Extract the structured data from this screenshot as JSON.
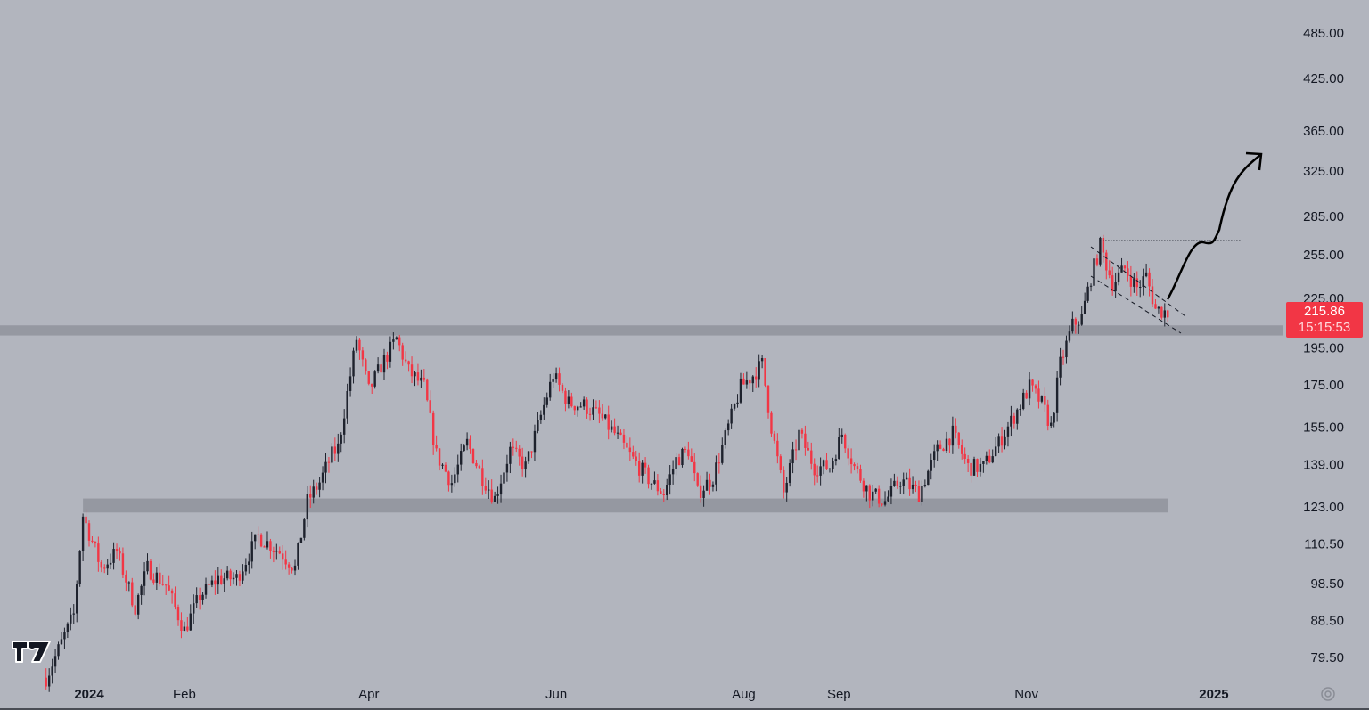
{
  "chart_data": {
    "type": "candlestick",
    "y_scale": "log",
    "ylim": [
      75,
      520
    ],
    "y_ticks": [
      "485.00",
      "425.00",
      "365.00",
      "325.00",
      "285.00",
      "255.00",
      "225.00",
      "195.00",
      "175.00",
      "155.00",
      "139.00",
      "123.00",
      "110.50",
      "98.50",
      "88.50",
      "79.50"
    ],
    "x_ticks": [
      {
        "label": "2024",
        "date": "2024-01-01",
        "bold": true
      },
      {
        "label": "Feb",
        "date": "2024-02-01",
        "bold": false
      },
      {
        "label": "Apr",
        "date": "2024-04-01",
        "bold": false
      },
      {
        "label": "Jun",
        "date": "2024-06-01",
        "bold": false
      },
      {
        "label": "Aug",
        "date": "2024-08-01",
        "bold": false
      },
      {
        "label": "Sep",
        "date": "2024-09-01",
        "bold": false
      },
      {
        "label": "Nov",
        "date": "2024-11-01",
        "bold": false
      },
      {
        "label": "2025",
        "date": "2025-01-01",
        "bold": true
      }
    ],
    "close_path": [
      [
        "2023-12-18",
        75
      ],
      [
        "2023-12-27",
        90
      ],
      [
        "2023-12-30",
        120
      ],
      [
        "2024-01-05",
        103
      ],
      [
        "2024-01-10",
        108
      ],
      [
        "2024-01-16",
        92
      ],
      [
        "2024-01-20",
        103
      ],
      [
        "2024-01-26",
        98
      ],
      [
        "2024-02-01",
        86
      ],
      [
        "2024-02-06",
        95
      ],
      [
        "2024-02-12",
        100
      ],
      [
        "2024-02-18",
        100
      ],
      [
        "2024-02-25",
        113
      ],
      [
        "2024-03-03",
        108
      ],
      [
        "2024-03-08",
        103
      ],
      [
        "2024-03-12",
        125
      ],
      [
        "2024-03-16",
        132
      ],
      [
        "2024-03-20",
        143
      ],
      [
        "2024-03-22",
        146
      ],
      [
        "2024-03-26",
        180
      ],
      [
        "2024-03-28",
        200
      ],
      [
        "2024-04-01",
        172
      ],
      [
        "2024-04-05",
        185
      ],
      [
        "2024-04-10",
        200
      ],
      [
        "2024-04-14",
        182
      ],
      [
        "2024-04-19",
        174
      ],
      [
        "2024-04-23",
        143
      ],
      [
        "2024-04-28",
        132
      ],
      [
        "2024-05-03",
        148
      ],
      [
        "2024-05-08",
        134
      ],
      [
        "2024-05-12",
        126
      ],
      [
        "2024-05-17",
        145
      ],
      [
        "2024-05-22",
        138
      ],
      [
        "2024-05-27",
        160
      ],
      [
        "2024-05-31",
        180
      ],
      [
        "2024-06-05",
        166
      ],
      [
        "2024-06-10",
        165
      ],
      [
        "2024-06-15",
        160
      ],
      [
        "2024-06-20",
        152
      ],
      [
        "2024-06-26",
        141
      ],
      [
        "2024-07-02",
        132
      ],
      [
        "2024-07-06",
        128
      ],
      [
        "2024-07-10",
        141
      ],
      [
        "2024-07-14",
        145
      ],
      [
        "2024-07-17",
        128
      ],
      [
        "2024-07-22",
        134
      ],
      [
        "2024-07-27",
        155
      ],
      [
        "2024-07-31",
        174
      ],
      [
        "2024-08-04",
        180
      ],
      [
        "2024-08-07",
        186
      ],
      [
        "2024-08-10",
        155
      ],
      [
        "2024-08-14",
        128
      ],
      [
        "2024-08-19",
        152
      ],
      [
        "2024-08-24",
        138
      ],
      [
        "2024-08-29",
        138
      ],
      [
        "2024-09-02",
        152
      ],
      [
        "2024-09-06",
        138
      ],
      [
        "2024-09-11",
        128
      ],
      [
        "2024-09-16",
        125
      ],
      [
        "2024-09-21",
        133
      ],
      [
        "2024-09-27",
        128
      ],
      [
        "2024-10-03",
        145
      ],
      [
        "2024-10-08",
        152
      ],
      [
        "2024-10-13",
        138
      ],
      [
        "2024-10-18",
        138
      ],
      [
        "2024-10-23",
        148
      ],
      [
        "2024-10-28",
        160
      ],
      [
        "2024-11-02",
        174
      ],
      [
        "2024-11-06",
        166
      ],
      [
        "2024-11-09",
        155
      ],
      [
        "2024-11-12",
        186
      ],
      [
        "2024-11-16",
        208
      ],
      [
        "2024-11-19",
        213
      ],
      [
        "2024-11-22",
        239
      ],
      [
        "2024-11-25",
        262
      ],
      [
        "2024-11-29",
        235
      ],
      [
        "2024-12-03",
        245
      ],
      [
        "2024-12-07",
        232
      ],
      [
        "2024-12-10",
        240
      ],
      [
        "2024-12-13",
        218
      ],
      [
        "2024-12-17",
        216
      ]
    ],
    "zones": [
      {
        "from": 202,
        "to": 208,
        "start": "2023-11-01",
        "end": "2025-02-01"
      },
      {
        "from": 121,
        "to": 126,
        "start": "2023-12-30",
        "end": "2024-12-17"
      }
    ],
    "level_line": {
      "price": 266,
      "start": "2024-11-25",
      "end": "2025-01-10",
      "style": "dotted"
    },
    "colors": {
      "background": "#b2b5be",
      "up": "#1e222d",
      "down": "#f23645",
      "zone": "#9598a1",
      "label": "#f23645"
    },
    "grid": false,
    "legend": "none"
  },
  "price_label": {
    "price": "215.86",
    "countdown": "15:15:53"
  },
  "brand": "TV"
}
